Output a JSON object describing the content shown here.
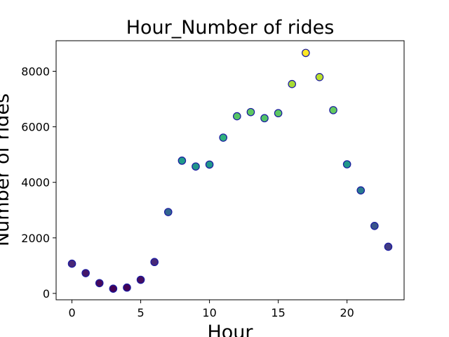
{
  "chart_data": {
    "type": "scatter",
    "title": "Hour_Number of rides",
    "xlabel": "Hour",
    "ylabel": "Number of rides",
    "x": [
      0,
      1,
      2,
      3,
      4,
      5,
      6,
      7,
      8,
      9,
      10,
      11,
      12,
      13,
      14,
      15,
      16,
      17,
      18,
      19,
      20,
      21,
      22,
      23
    ],
    "y": [
      1070,
      730,
      370,
      170,
      210,
      490,
      1130,
      2930,
      4780,
      4570,
      4640,
      5610,
      6380,
      6530,
      6310,
      6490,
      7540,
      8660,
      7790,
      6600,
      4650,
      3710,
      2430,
      1680
    ],
    "xlim": [
      -1.15,
      24.15
    ],
    "ylim": [
      -230,
      9100
    ],
    "xticks": [
      0,
      5,
      10,
      15,
      20
    ],
    "yticks": [
      0,
      2000,
      4000,
      6000,
      8000
    ],
    "xtick_labels": [
      "0",
      "5",
      "10",
      "15",
      "20"
    ],
    "ytick_labels": [
      "0",
      "2000",
      "4000",
      "6000",
      "8000"
    ],
    "grid": false,
    "legend": "none",
    "colormap": "viridis",
    "color_by": "y",
    "marker_edge_color": "#1a1aa0"
  }
}
